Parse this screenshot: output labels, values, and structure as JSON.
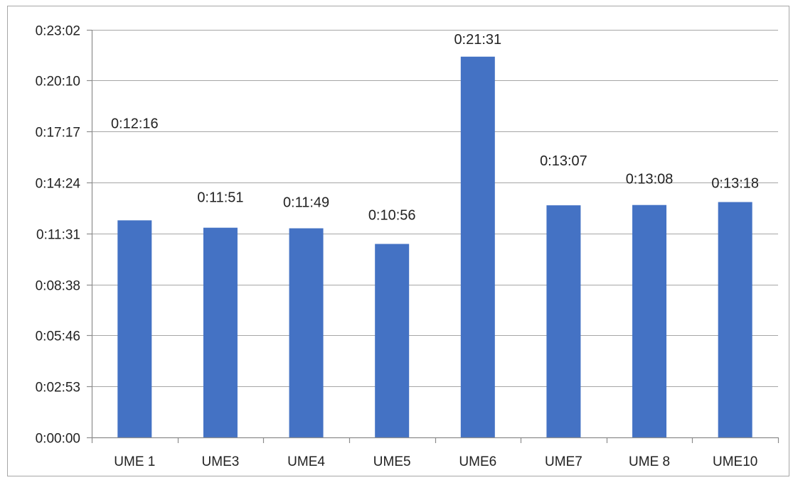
{
  "chart_data": {
    "type": "bar",
    "categories": [
      "UME 1",
      "UME3",
      "UME4",
      "UME5",
      "UME6",
      "UME7",
      "UME 8",
      "UME10"
    ],
    "values_seconds": [
      736,
      711,
      709,
      656,
      1291,
      787,
      788,
      798
    ],
    "data_labels": [
      "0:12:16",
      "0:11:51",
      "0:11:49",
      "0:10:56",
      "0:21:31",
      "0:13:07",
      "0:13:08",
      "0:13:18"
    ],
    "y_ticks_seconds": [
      0,
      173,
      346,
      518,
      691,
      864,
      1037,
      1210,
      1382
    ],
    "y_tick_labels": [
      "0:00:00",
      "0:02:53",
      "0:05:46",
      "0:08:38",
      "0:11:31",
      "0:14:24",
      "0:17:17",
      "0:20:10",
      "0:23:02"
    ],
    "ylim_seconds": [
      0,
      1382
    ],
    "y_unit": "h:mm:ss",
    "grid": true,
    "title": "",
    "xlabel": "",
    "ylabel": "",
    "bar_color": "#4472c4",
    "grid_color": "#a6a6a6"
  }
}
